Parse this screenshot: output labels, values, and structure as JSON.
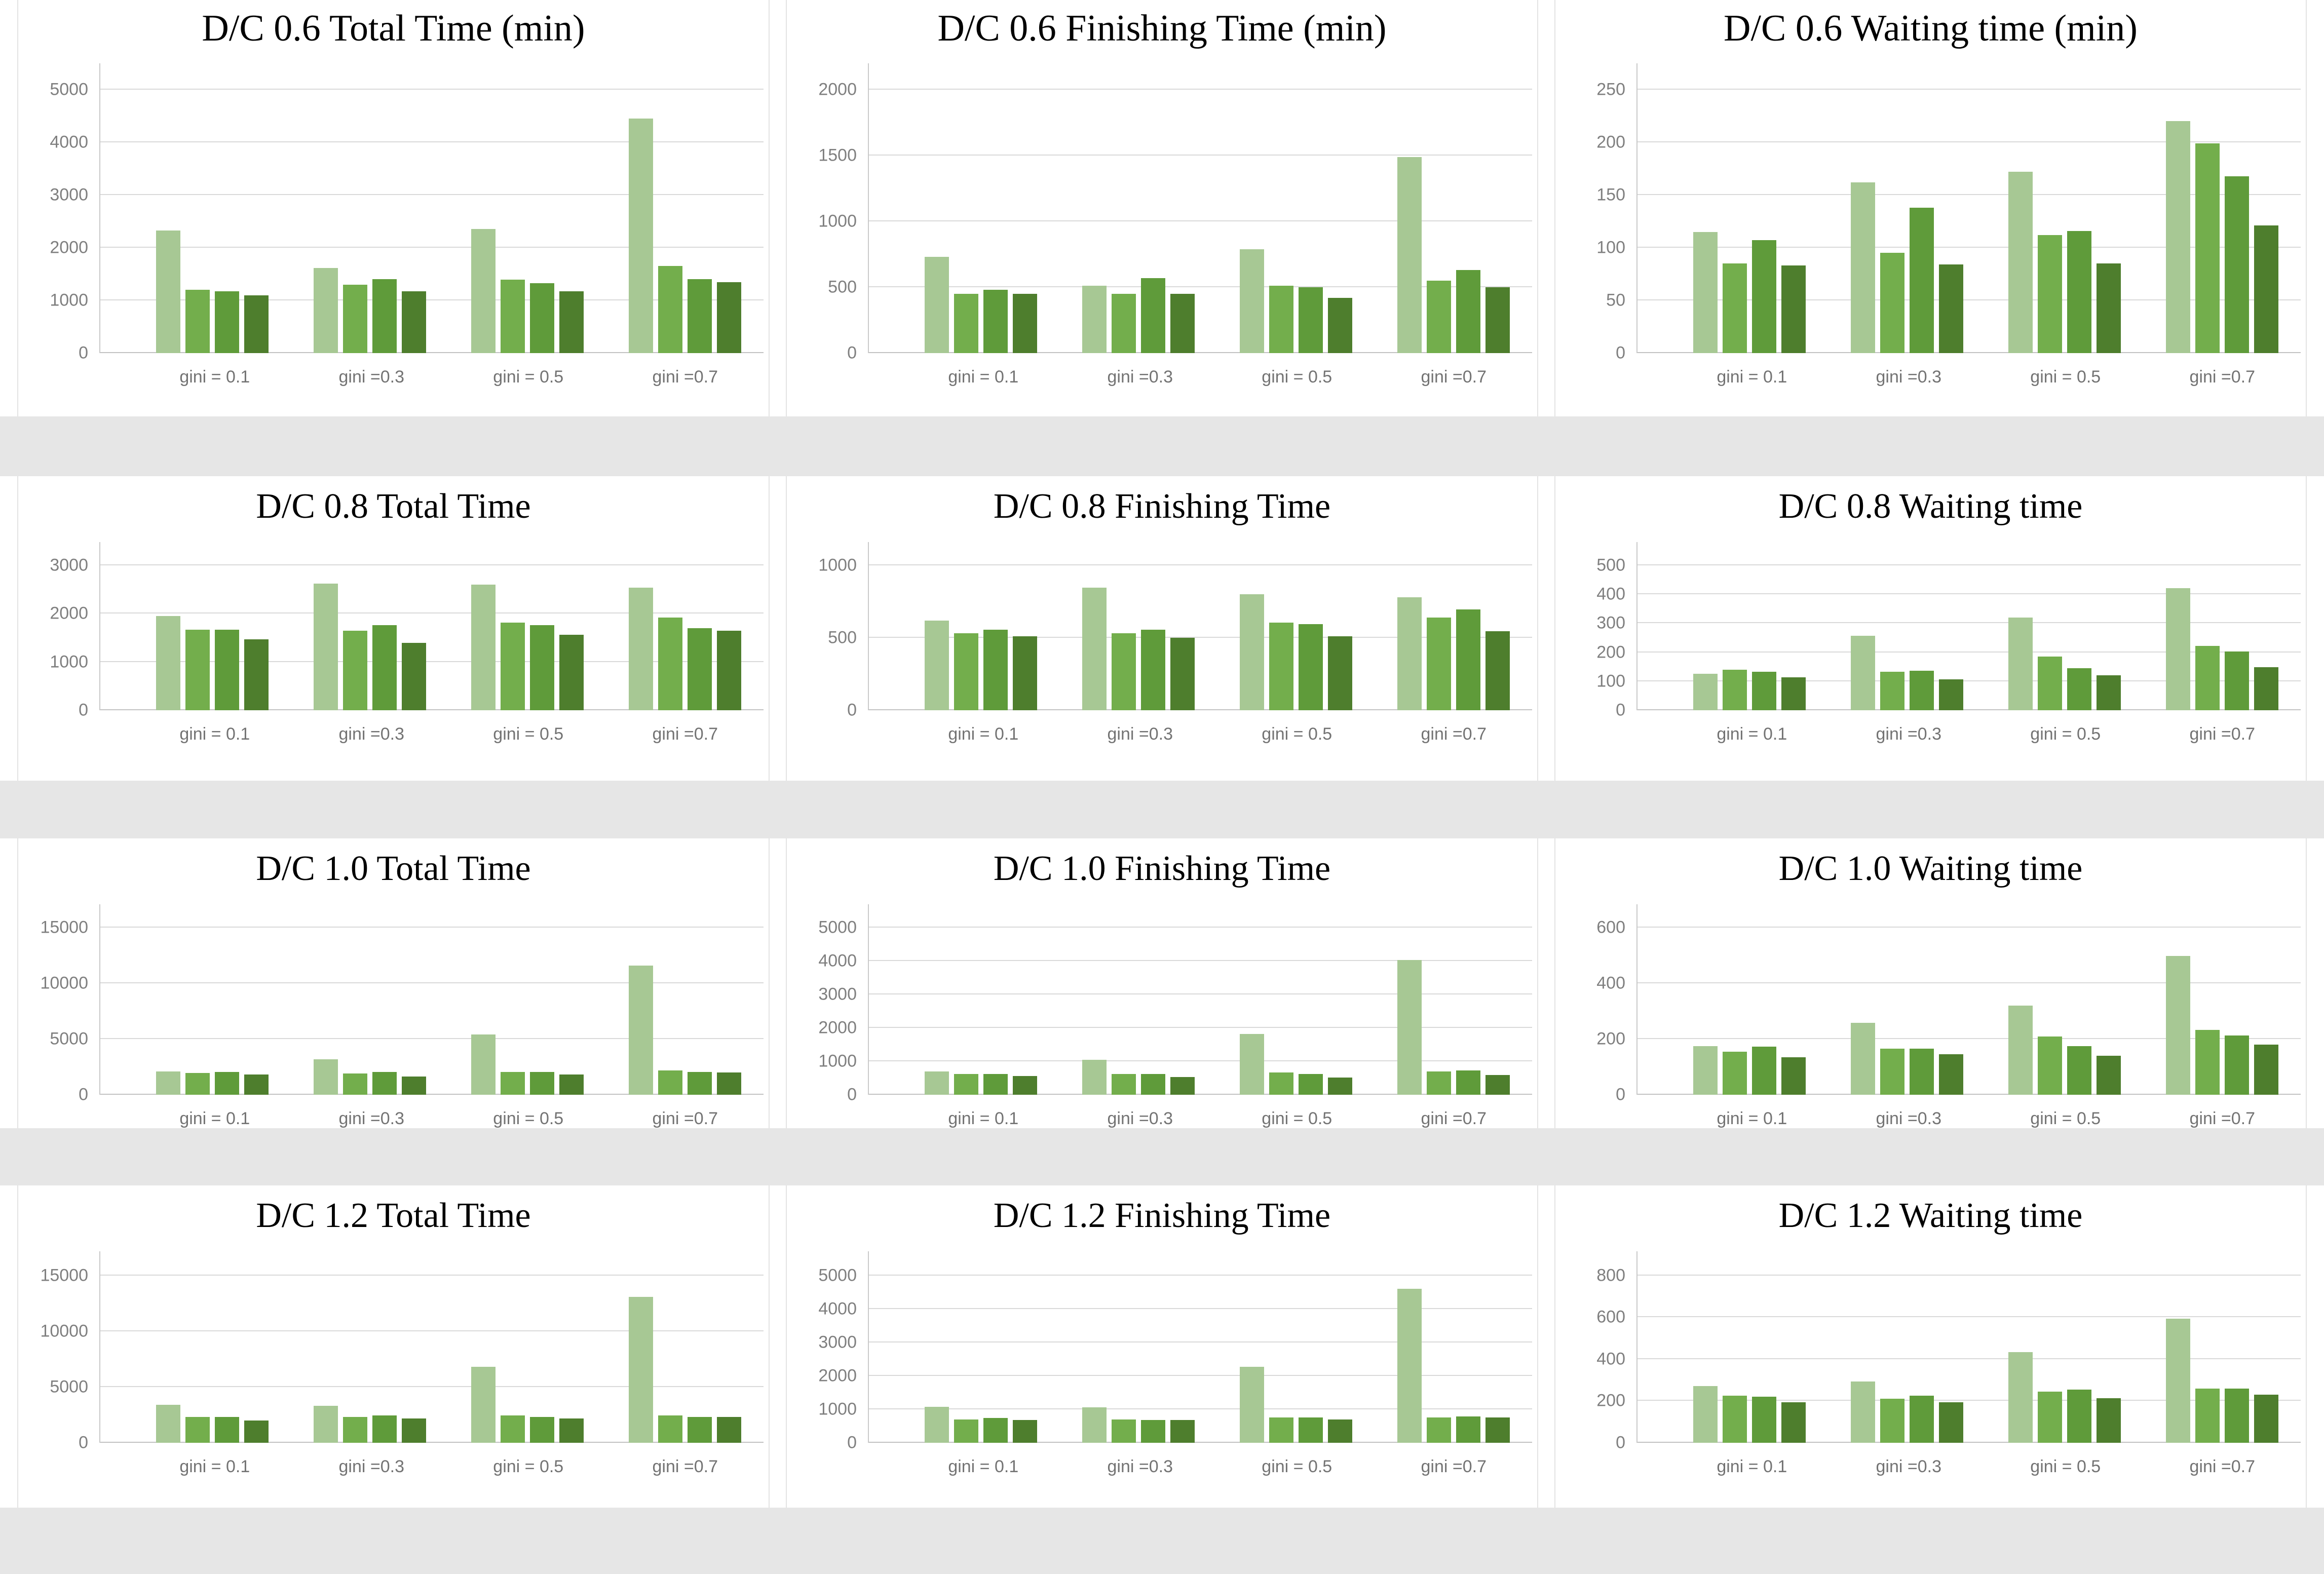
{
  "page": {
    "background": "#ffffff",
    "separator_band_color": "#e6e6e6"
  },
  "bar_colors": [
    "#a7c894",
    "#73ae4c",
    "#5f9b3a",
    "#4e7e2d"
  ],
  "categories": [
    "gini = 0.1",
    "gini =0.3",
    "gini = 0.5",
    "gini =0.7"
  ],
  "chart_data": [
    {
      "type": "bar",
      "row": 1,
      "col": 1,
      "title": "D/C 0.6 Total Time (min)",
      "categories": [
        "gini = 0.1",
        "gini =0.3",
        "gini = 0.5",
        "gini =0.7"
      ],
      "yticks": [
        0,
        1000,
        2000,
        3000,
        4000,
        5000
      ],
      "ylim": [
        0,
        5000
      ],
      "grid": true,
      "legend": "none",
      "series": [
        {
          "name": "series1",
          "values": [
            2330,
            1620,
            2360,
            4450
          ]
        },
        {
          "name": "series2",
          "values": [
            1200,
            1300,
            1390,
            1650
          ]
        },
        {
          "name": "series3",
          "values": [
            1170,
            1400,
            1330,
            1400
          ]
        },
        {
          "name": "series4",
          "values": [
            1100,
            1170,
            1170,
            1350
          ]
        }
      ]
    },
    {
      "type": "bar",
      "row": 1,
      "col": 2,
      "title": "D/C 0.6 Finishing Time (min)",
      "categories": [
        "gini = 0.1",
        "gini =0.3",
        "gini = 0.5",
        "gini =0.7"
      ],
      "yticks": [
        0,
        500,
        1000,
        1500,
        2000
      ],
      "ylim": [
        0,
        2000
      ],
      "grid": true,
      "legend": "none",
      "series": [
        {
          "name": "series1",
          "values": [
            730,
            510,
            790,
            1490
          ]
        },
        {
          "name": "series2",
          "values": [
            450,
            450,
            510,
            550
          ]
        },
        {
          "name": "series3",
          "values": [
            480,
            570,
            500,
            630
          ]
        },
        {
          "name": "series4",
          "values": [
            450,
            450,
            420,
            500
          ]
        }
      ]
    },
    {
      "type": "bar",
      "row": 1,
      "col": 3,
      "title": "D/C 0.6 Waiting time (min)",
      "categories": [
        "gini = 0.1",
        "gini =0.3",
        "gini = 0.5",
        "gini =0.7"
      ],
      "yticks": [
        0,
        50,
        100,
        150,
        200,
        250
      ],
      "ylim": [
        0,
        250
      ],
      "grid": true,
      "legend": "none",
      "series": [
        {
          "name": "series1",
          "values": [
            115,
            162,
            172,
            220
          ]
        },
        {
          "name": "series2",
          "values": [
            85,
            95,
            112,
            199
          ]
        },
        {
          "name": "series3",
          "values": [
            107,
            138,
            116,
            168
          ]
        },
        {
          "name": "series4",
          "values": [
            83,
            84,
            85,
            121
          ]
        }
      ]
    },
    {
      "type": "bar",
      "row": 2,
      "col": 1,
      "title": "D/C 0.8 Total Time",
      "categories": [
        "gini = 0.1",
        "gini =0.3",
        "gini = 0.5",
        "gini =0.7"
      ],
      "yticks": [
        0,
        1000,
        2000,
        3000
      ],
      "ylim": [
        0,
        3000
      ],
      "grid": true,
      "legend": "none",
      "series": [
        {
          "name": "series1",
          "values": [
            1950,
            2620,
            2600,
            2540
          ]
        },
        {
          "name": "series2",
          "values": [
            1670,
            1650,
            1810,
            1920
          ]
        },
        {
          "name": "series3",
          "values": [
            1670,
            1760,
            1760,
            1700
          ]
        },
        {
          "name": "series4",
          "values": [
            1470,
            1400,
            1560,
            1650
          ]
        }
      ]
    },
    {
      "type": "bar",
      "row": 2,
      "col": 2,
      "title": "D/C 0.8 Finishing Time",
      "categories": [
        "gini = 0.1",
        "gini =0.3",
        "gini = 0.5",
        "gini =0.7"
      ],
      "yticks": [
        0,
        500,
        1000
      ],
      "ylim": [
        0,
        1000
      ],
      "grid": true,
      "legend": "none",
      "series": [
        {
          "name": "series1",
          "values": [
            620,
            845,
            800,
            780
          ]
        },
        {
          "name": "series2",
          "values": [
            530,
            530,
            605,
            640
          ]
        },
        {
          "name": "series3",
          "values": [
            555,
            555,
            595,
            695
          ]
        },
        {
          "name": "series4",
          "values": [
            510,
            500,
            510,
            545
          ]
        }
      ]
    },
    {
      "type": "bar",
      "row": 2,
      "col": 3,
      "title": "D/C 0.8 Waiting time",
      "categories": [
        "gini = 0.1",
        "gini =0.3",
        "gini = 0.5",
        "gini =0.7"
      ],
      "yticks": [
        0,
        100,
        200,
        300,
        400,
        500
      ],
      "ylim": [
        0,
        500
      ],
      "grid": true,
      "legend": "none",
      "series": [
        {
          "name": "series1",
          "values": [
            125,
            257,
            320,
            422
          ]
        },
        {
          "name": "series2",
          "values": [
            140,
            133,
            185,
            222
          ]
        },
        {
          "name": "series3",
          "values": [
            133,
            136,
            145,
            203
          ]
        },
        {
          "name": "series4",
          "values": [
            113,
            106,
            120,
            148
          ]
        }
      ]
    },
    {
      "type": "bar",
      "row": 3,
      "col": 1,
      "title": "D/C 1.0 Total Time",
      "categories": [
        "gini = 0.1",
        "gini =0.3",
        "gini = 0.5",
        "gini =0.7"
      ],
      "yticks": [
        0,
        5000,
        10000,
        15000
      ],
      "ylim": [
        0,
        15000
      ],
      "grid": true,
      "legend": "none",
      "series": [
        {
          "name": "series1",
          "values": [
            2100,
            3200,
            5400,
            11600
          ]
        },
        {
          "name": "series2",
          "values": [
            1950,
            1900,
            2050,
            2200
          ]
        },
        {
          "name": "series3",
          "values": [
            2050,
            2050,
            2050,
            2050
          ]
        },
        {
          "name": "series4",
          "values": [
            1800,
            1650,
            1800,
            2000
          ]
        }
      ]
    },
    {
      "type": "bar",
      "row": 3,
      "col": 2,
      "title": "D/C 1.0 Finishing Time",
      "categories": [
        "gini = 0.1",
        "gini =0.3",
        "gini = 0.5",
        "gini =0.7"
      ],
      "yticks": [
        0,
        1000,
        2000,
        3000,
        4000,
        5000
      ],
      "ylim": [
        0,
        5000
      ],
      "grid": true,
      "legend": "none",
      "series": [
        {
          "name": "series1",
          "values": [
            700,
            1040,
            1820,
            4030
          ]
        },
        {
          "name": "series2",
          "values": [
            620,
            620,
            660,
            690
          ]
        },
        {
          "name": "series3",
          "values": [
            620,
            620,
            620,
            730
          ]
        },
        {
          "name": "series4",
          "values": [
            560,
            530,
            520,
            590
          ]
        }
      ]
    },
    {
      "type": "bar",
      "row": 3,
      "col": 3,
      "title": "D/C 1.0 Waiting time",
      "categories": [
        "gini = 0.1",
        "gini =0.3",
        "gini = 0.5",
        "gini =0.7"
      ],
      "yticks": [
        0,
        200,
        400,
        600
      ],
      "ylim": [
        0,
        600
      ],
      "grid": true,
      "legend": "none",
      "series": [
        {
          "name": "series1",
          "values": [
            175,
            258,
            320,
            498
          ]
        },
        {
          "name": "series2",
          "values": [
            155,
            165,
            210,
            232
          ]
        },
        {
          "name": "series3",
          "values": [
            172,
            165,
            175,
            213
          ]
        },
        {
          "name": "series4",
          "values": [
            135,
            145,
            140,
            180
          ]
        }
      ]
    },
    {
      "type": "bar",
      "row": 4,
      "col": 1,
      "title": "D/C 1.2 Total Time",
      "categories": [
        "gini = 0.1",
        "gini =0.3",
        "gini = 0.5",
        "gini =0.7"
      ],
      "yticks": [
        0,
        5000,
        10000,
        15000
      ],
      "ylim": [
        0,
        15000
      ],
      "grid": true,
      "legend": "none",
      "series": [
        {
          "name": "series1",
          "values": [
            3400,
            3300,
            6800,
            13100
          ]
        },
        {
          "name": "series2",
          "values": [
            2300,
            2300,
            2450,
            2450
          ]
        },
        {
          "name": "series3",
          "values": [
            2300,
            2450,
            2300,
            2300
          ]
        },
        {
          "name": "series4",
          "values": [
            2000,
            2200,
            2200,
            2300
          ]
        }
      ]
    },
    {
      "type": "bar",
      "row": 4,
      "col": 2,
      "title": "D/C 1.2 Finishing Time",
      "categories": [
        "gini = 0.1",
        "gini =0.3",
        "gini = 0.5",
        "gini =0.7"
      ],
      "yticks": [
        0,
        1000,
        2000,
        3000,
        4000,
        5000
      ],
      "ylim": [
        0,
        5000
      ],
      "grid": true,
      "legend": "none",
      "series": [
        {
          "name": "series1",
          "values": [
            1080,
            1060,
            2280,
            4600
          ]
        },
        {
          "name": "series2",
          "values": [
            700,
            700,
            760,
            760
          ]
        },
        {
          "name": "series3",
          "values": [
            740,
            680,
            760,
            790
          ]
        },
        {
          "name": "series4",
          "values": [
            680,
            680,
            700,
            760
          ]
        }
      ]
    },
    {
      "type": "bar",
      "row": 4,
      "col": 3,
      "title": "D/C 1.2 Waiting time",
      "categories": [
        "gini = 0.1",
        "gini =0.3",
        "gini = 0.5",
        "gini =0.7"
      ],
      "yticks": [
        0,
        200,
        400,
        600,
        800
      ],
      "ylim": [
        0,
        800
      ],
      "grid": true,
      "legend": "none",
      "series": [
        {
          "name": "series1",
          "values": [
            272,
            293,
            433,
            595
          ]
        },
        {
          "name": "series2",
          "values": [
            225,
            212,
            245,
            260
          ]
        },
        {
          "name": "series3",
          "values": [
            220,
            226,
            255,
            260
          ]
        },
        {
          "name": "series4",
          "values": [
            193,
            193,
            213,
            230
          ]
        }
      ]
    }
  ]
}
